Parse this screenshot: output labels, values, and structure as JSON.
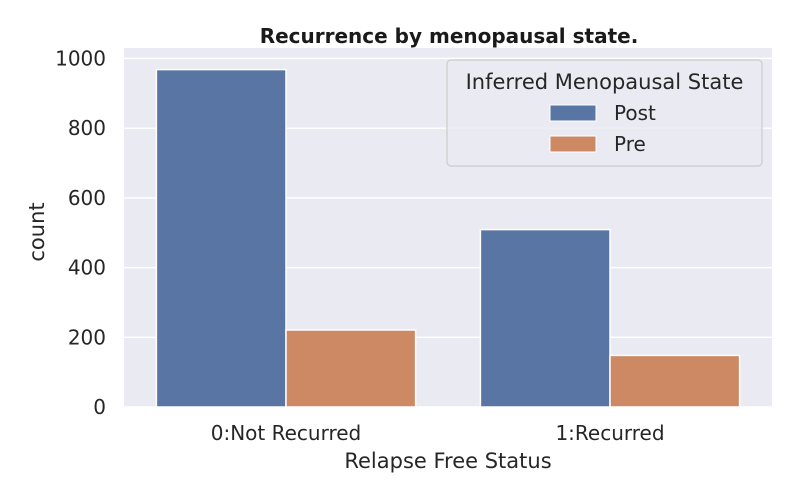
{
  "chart_data": {
    "type": "bar",
    "title": "Recurrence by menopausal state.",
    "xlabel": "Relapse Free Status",
    "ylabel": "count",
    "categories": [
      "0:Not Recurred",
      "1:Recurred"
    ],
    "series": [
      {
        "name": "Post",
        "values": [
          968,
          509
        ],
        "color": "#5875a4"
      },
      {
        "name": "Pre",
        "values": [
          221,
          148
        ],
        "color": "#cc8963"
      }
    ],
    "ylim": [
      0,
      1030
    ],
    "yticks": [
      0,
      200,
      400,
      600,
      800,
      1000
    ],
    "grid": true,
    "legend": {
      "title": "Inferred Menopausal State",
      "placement": "top-right"
    },
    "background_color": "#eaeaf2",
    "grid_color": "#ffffff"
  }
}
